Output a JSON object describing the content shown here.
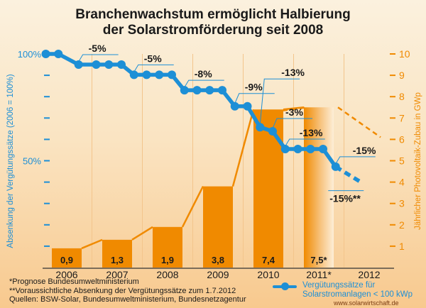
{
  "chart_data": {
    "type": "bar+line",
    "title": "Branchenwachstum ermöglicht Halbierung der Solarstromförderung seit 2008",
    "title_lines": [
      "Branchenwachstum ermöglicht Halbierung",
      "der Solarstromförderung seit 2008"
    ],
    "categories": [
      "2006",
      "2007",
      "2008",
      "2009",
      "2010",
      "2011*",
      "2012"
    ],
    "bar_series": {
      "name": "Jährlicher Photovoltaik-Zubau in GWp",
      "values": [
        0.9,
        1.3,
        1.9,
        3.8,
        7.4,
        7.5
      ],
      "labels": [
        "0,9",
        "1,3",
        "1,9",
        "3,8",
        "7,4",
        "7,5*"
      ],
      "forecast_index": 5,
      "color": "#f08a00"
    },
    "line_series": {
      "name": "Vergütungssätze für Solarstromanlagen < 100 kWp",
      "points": [
        {
          "t": 2006.0,
          "v": 100
        },
        {
          "t": 2006.25,
          "v": 100
        },
        {
          "t": 2006.65,
          "v": 95
        },
        {
          "t": 2007.0,
          "v": 95
        },
        {
          "t": 2007.25,
          "v": 95
        },
        {
          "t": 2007.5,
          "v": 95
        },
        {
          "t": 2007.75,
          "v": 90.25
        },
        {
          "t": 2008.0,
          "v": 90.25
        },
        {
          "t": 2008.25,
          "v": 90.25
        },
        {
          "t": 2008.5,
          "v": 90.25
        },
        {
          "t": 2008.75,
          "v": 83
        },
        {
          "t": 2009.0,
          "v": 83
        },
        {
          "t": 2009.25,
          "v": 83
        },
        {
          "t": 2009.5,
          "v": 83
        },
        {
          "t": 2009.75,
          "v": 75.5
        },
        {
          "t": 2010.0,
          "v": 75.5
        },
        {
          "t": 2010.25,
          "v": 65.7
        },
        {
          "t": 2010.5,
          "v": 63.8
        },
        {
          "t": 2010.75,
          "v": 55.5
        },
        {
          "t": 2011.0,
          "v": 55.5
        },
        {
          "t": 2011.25,
          "v": 55.5
        },
        {
          "t": 2011.5,
          "v": 55.5
        },
        {
          "t": 2011.75,
          "v": 47.2
        }
      ],
      "forecast_end": {
        "t": 2012.25,
        "v": 40
      },
      "color": "#1d8fd6"
    },
    "bar_trend_forecast": {
      "from": 7.5,
      "to_2012": 6.1
    },
    "annotations": [
      {
        "label": "-5%",
        "t": 2006.65
      },
      {
        "label": "-5%",
        "t": 2007.75
      },
      {
        "label": "-8%",
        "t": 2008.75
      },
      {
        "label": "-9%",
        "t": 2009.75
      },
      {
        "label": "-13%",
        "t": 2010.25
      },
      {
        "label": "-3%",
        "t": 2010.5
      },
      {
        "label": "-13%",
        "t": 2010.75
      },
      {
        "label": "-15%",
        "t": 2011.75
      },
      {
        "label": "-15%**",
        "t": 2012.25
      }
    ],
    "left_axis": {
      "label": "Absenkung der Vergütungssätze (2006 = 100%)",
      "tick_labels": [
        "100%",
        "50%"
      ],
      "range": [
        0,
        100
      ],
      "color": "#1d8fd6"
    },
    "right_axis": {
      "label": "Jährlicher Photovoltaik-Zubau in GWp",
      "ticks": [
        "1",
        "2",
        "3",
        "4",
        "5",
        "6",
        "7",
        "8",
        "9",
        "10"
      ],
      "range": [
        0,
        10
      ],
      "color": "#f08a00"
    },
    "legend": {
      "line1": "Vergütungssätze für",
      "line2": "Solarstromanlagen < 100 kWp",
      "position": "bottom-right"
    }
  },
  "footnotes": [
    "*Prognose Bundesumweltministerium",
    "**Voraussichtliche Absenkung der Vergütungssätze zum 1.7.2012",
    "Quellen: BSW-Solar, Bundesumweltministerium, Bundesnetzagentur"
  ],
  "source_url": "www.solarwirtschaft.de"
}
